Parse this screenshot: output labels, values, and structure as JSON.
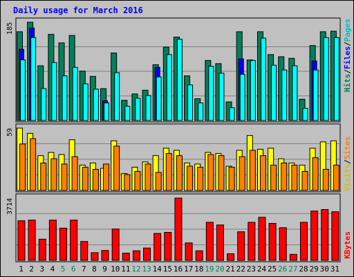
{
  "chart_data": {
    "type": "bar",
    "title": "Daily usage for March 2016",
    "categories": [
      "1",
      "2",
      "3",
      "4",
      "5",
      "6",
      "7",
      "8",
      "9",
      "10",
      "11",
      "12",
      "13",
      "14",
      "15",
      "16",
      "17",
      "18",
      "19",
      "20",
      "21",
      "22",
      "23",
      "24",
      "25",
      "26",
      "27",
      "28",
      "29",
      "30",
      "31"
    ],
    "weekend_days": [
      "5",
      "6",
      "12",
      "13",
      "19",
      "20",
      "26",
      "27"
    ],
    "panels": [
      {
        "id": "hits",
        "max_label": "185",
        "ylim": [
          0,
          185
        ],
        "series": [
          {
            "name": "Hits",
            "color": "#00805c",
            "values": [
              167,
              185,
              103,
              162,
              146,
              160,
              93,
              83,
              60,
              127,
              38,
              50,
              57,
              105,
              138,
              157,
              84,
              41,
              113,
              107,
              35,
              167,
              114,
              167,
              124,
              120,
              117,
              40,
              141,
              167,
              168
            ]
          },
          {
            "name": "Files",
            "color": "#0000ff",
            "values": [
              134,
              174,
              0,
              0,
              0,
              0,
              0,
              0,
              37,
              0,
              0,
              0,
              0,
              100,
              0,
              0,
              0,
              0,
              0,
              0,
              0,
              116,
              0,
              0,
              0,
              0,
              0,
              0,
              112,
              0,
              0
            ]
          },
          {
            "name": "Pages",
            "color": "#00ffff",
            "values": [
              114,
              156,
              60,
              109,
              84,
              100,
              69,
              59,
              33,
              90,
              27,
              42,
              47,
              82,
              124,
              153,
              67,
              33,
              102,
              89,
              24,
              87,
              113,
              155,
              104,
              95,
              103,
              23,
              95,
              156,
              156
            ]
          }
        ]
      },
      {
        "id": "visits",
        "max_label": "59",
        "ylim": [
          0,
          59
        ],
        "series": [
          {
            "name": "Visits",
            "color": "#ffff00",
            "values": [
              59,
              54,
              33,
              36,
              34,
              48,
              24,
              26,
              21,
              47,
              16,
              22,
              27,
              33,
              40,
              38,
              26,
              25,
              36,
              35,
              23,
              38,
              52,
              39,
              40,
              30,
              26,
              24,
              40,
              46,
              47
            ]
          },
          {
            "name": "Sites",
            "color": "#ff8000",
            "values": [
              44,
              49,
              26,
              30,
              25,
              32,
              22,
              20,
              25,
              42,
              15,
              18,
              25,
              17,
              35,
              33,
              23,
              22,
              34,
              33,
              22,
              32,
              38,
              33,
              24,
              26,
              24,
              18,
              31,
              20,
              24
            ]
          }
        ]
      },
      {
        "id": "kbytes",
        "max_label": "3714",
        "ylim": [
          0,
          3714
        ],
        "series": [
          {
            "name": "KBytes",
            "color": "#ff0000",
            "values": [
              2361,
              2400,
              1265,
              2400,
              1922,
              2400,
              1127,
              460,
              592,
              1870,
              431,
              571,
              738,
              1606,
              1671,
              3714,
              1042,
              572,
              2270,
              2112,
              395,
              1707,
              2270,
              2570,
              2205,
              1950,
              358,
              2270,
              2940,
              3030,
              2900
            ]
          }
        ]
      }
    ],
    "legend": [
      {
        "label": "Hits",
        "color": "#00805c"
      },
      {
        "sep": "/"
      },
      {
        "label": "Files",
        "color": "#0000ff"
      },
      {
        "sep": "/"
      },
      {
        "label": "Pages",
        "color": "#00c0c0"
      },
      {
        "label": "Visits",
        "color": "#d0c000"
      },
      {
        "sep": "/"
      },
      {
        "label": "Sites",
        "color": "#ff8000"
      },
      {
        "label": "KBytes",
        "color": "#ff0000"
      }
    ]
  }
}
